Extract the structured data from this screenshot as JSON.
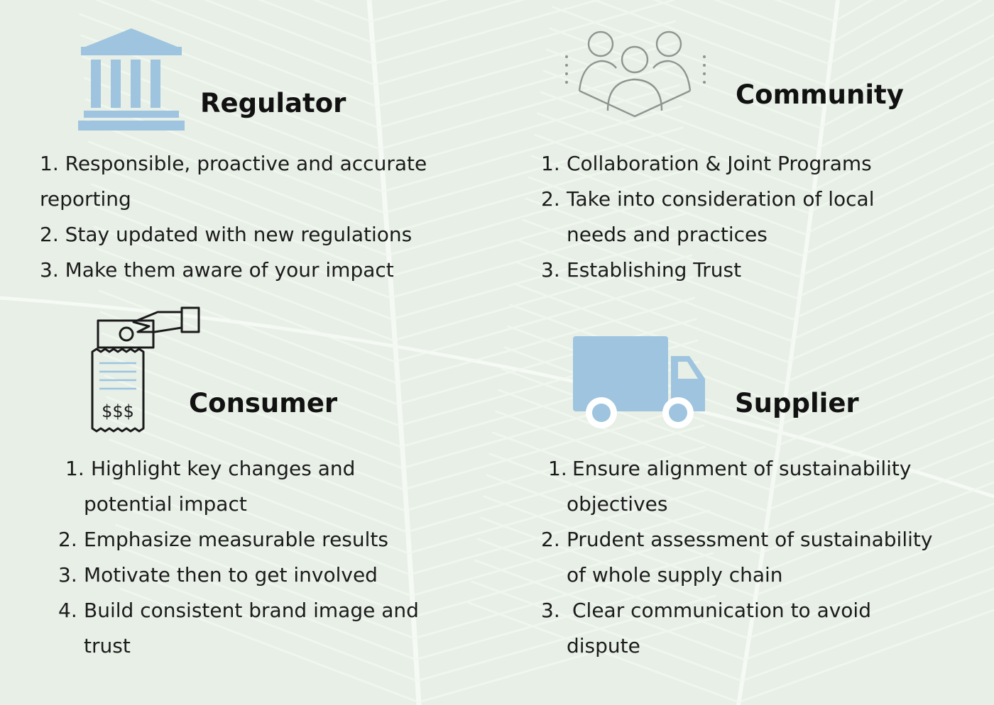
{
  "theme": {
    "background": "#e7efe6",
    "leaf_color": "#f7fbf6",
    "icon_blue": "#9ec4df",
    "icon_gray": "#8f9490",
    "text_color": "#1b1b1b"
  },
  "sections": {
    "regulator": {
      "icon": "government-building-icon",
      "title": "Regulator",
      "items": [
        {
          "num": "1.",
          "text": "Responsible, proactive and accurate",
          "cont": "reporting"
        },
        {
          "num": "2.",
          "text": "Stay updated with new regulations"
        },
        {
          "num": "3.",
          "text": "Make them aware of your impact"
        }
      ]
    },
    "community": {
      "icon": "people-group-icon",
      "title": "Community",
      "items": [
        {
          "num": "1.",
          "text": "Collaboration & Joint Programs"
        },
        {
          "num": "2.",
          "text": "Take into consideration of local",
          "cont": "needs and practices"
        },
        {
          "num": "3.",
          "text": "Establishing Trust"
        }
      ]
    },
    "consumer": {
      "icon": "payment-receipt-icon",
      "icon_text": "$$$",
      "title": "Consumer",
      "items": [
        {
          "num": "1.",
          "text": "Highlight key changes and",
          "cont": "potential impact"
        },
        {
          "num": "2.",
          "text": "Emphasize measurable results"
        },
        {
          "num": "3.",
          "text": "Motivate then to get involved"
        },
        {
          "num": "4.",
          "text": "Build consistent brand image and",
          "cont": "trust"
        }
      ]
    },
    "supplier": {
      "icon": "delivery-truck-icon",
      "title": "Supplier",
      "items": [
        {
          "num": "1.",
          "text": "Ensure alignment of sustainability",
          "cont": "objectives"
        },
        {
          "num": "2.",
          "text": "Prudent assessment of sustainability",
          "cont": "of whole supply chain"
        },
        {
          "num": "3.",
          "text": "Clear communication to avoid",
          "cont": "dispute"
        }
      ]
    }
  }
}
